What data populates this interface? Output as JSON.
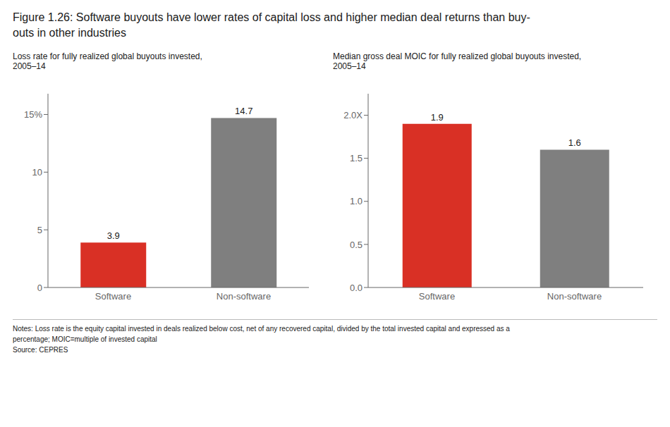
{
  "title": "Figure 1.26: Software buyouts have lower rates of capital loss and higher median deal returns than buy-\nouts in other industries",
  "annotations": [
    "Notes: Loss rate is the equity capital invested in deals realized below cost, net of any recovered capital, divided by the total invested capital and expressed as a",
    "percentage; MOIC=multiple of invested capital",
    "Source: CEPRES"
  ],
  "chart_data": [
    {
      "type": "bar",
      "subtitle": "Loss rate for fully realized global buyouts invested,\n2005–14",
      "categories": [
        "Software",
        "Non-software"
      ],
      "values": [
        3.9,
        14.7
      ],
      "colors": [
        "#d93025",
        "#7f7f7f"
      ],
      "ylim": [
        0,
        16.8
      ],
      "yticks": [
        0,
        5,
        10,
        {
          "value": 15,
          "label": "15%"
        }
      ],
      "grid": false,
      "data_labels": true
    },
    {
      "type": "bar",
      "subtitle": "Median gross deal MOIC for fully realized global buyouts invested,\n2005–14",
      "categories": [
        "Software",
        "Non-software"
      ],
      "values": [
        1.9,
        1.6
      ],
      "colors": [
        "#d93025",
        "#7f7f7f"
      ],
      "ylim": [
        0,
        2.25
      ],
      "yticks": [
        {
          "value": 0.0,
          "label": "0.0"
        },
        {
          "value": 0.5,
          "label": "0.5"
        },
        {
          "value": 1.0,
          "label": "1.0"
        },
        {
          "value": 1.5,
          "label": "1.5"
        },
        {
          "value": 2.0,
          "label": "2.0X"
        }
      ],
      "grid": false,
      "data_labels": true
    }
  ]
}
